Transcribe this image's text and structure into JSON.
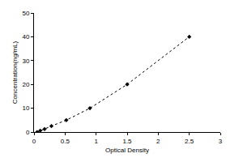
{
  "chart_data": {
    "type": "scatter",
    "x_label": "Optical Density",
    "y_label": "Concentration(ng/mL)",
    "x": [
      0.05,
      0.1,
      0.17,
      0.28,
      0.52,
      0.9,
      1.5,
      2.5
    ],
    "values": [
      0,
      0.6,
      1.25,
      2.5,
      5,
      10,
      20,
      40
    ],
    "color": "#000000",
    "marker": "diamond",
    "line_style": "dotted",
    "xlim": [
      0,
      3
    ],
    "xticks": [
      0,
      0.5,
      1,
      1.5,
      2,
      2.5,
      3
    ],
    "ylim": [
      0,
      50
    ],
    "yticks": [
      0,
      10,
      20,
      30,
      40,
      50
    ],
    "grid": false
  }
}
